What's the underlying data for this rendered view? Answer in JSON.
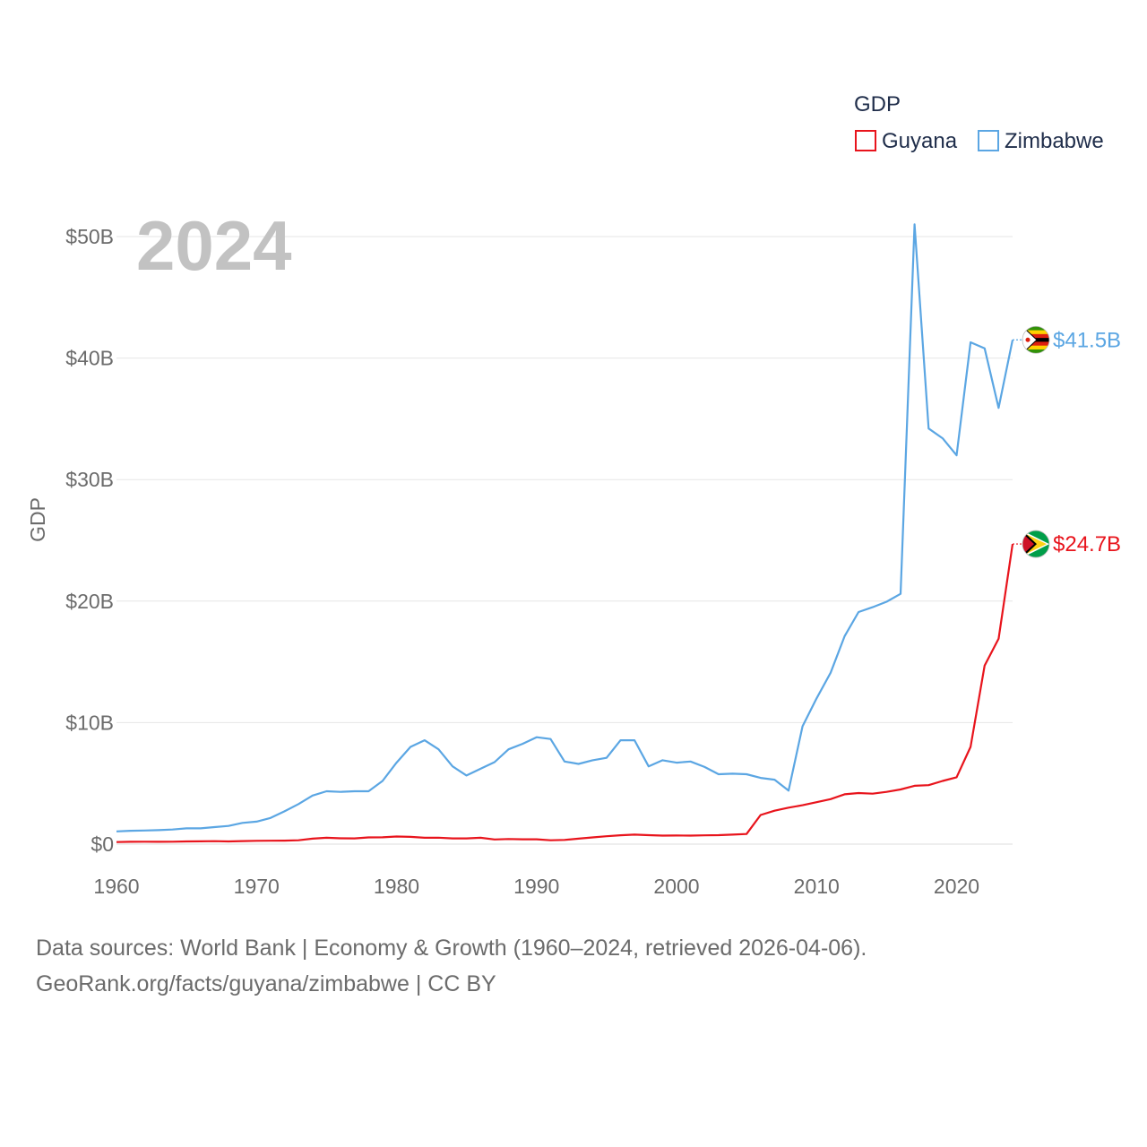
{
  "chart_data": {
    "type": "line",
    "current_year_label": "2024",
    "ylabel": "GDP",
    "ylim": [
      0,
      50
    ],
    "y_unit": "billions USD",
    "y_ticks": [
      {
        "value": 0,
        "label": "$0"
      },
      {
        "value": 10,
        "label": "$10B"
      },
      {
        "value": 20,
        "label": "$20B"
      },
      {
        "value": 30,
        "label": "$30B"
      },
      {
        "value": 40,
        "label": "$40B"
      },
      {
        "value": 50,
        "label": "$50B"
      }
    ],
    "xlim": [
      1960,
      2024
    ],
    "x_ticks": [
      {
        "value": 1960,
        "label": "1960"
      },
      {
        "value": 1970,
        "label": "1970"
      },
      {
        "value": 1980,
        "label": "1980"
      },
      {
        "value": 1990,
        "label": "1990"
      },
      {
        "value": 2000,
        "label": "2000"
      },
      {
        "value": 2010,
        "label": "2010"
      },
      {
        "value": 2020,
        "label": "2020"
      }
    ],
    "legend": {
      "title": "GDP",
      "position": "top-right"
    },
    "series": [
      {
        "name": "Guyana",
        "color": "#e8141c",
        "end_label": "$24.7B",
        "flag": "guyana-flag",
        "x": [
          1960,
          1961,
          1962,
          1963,
          1964,
          1965,
          1966,
          1967,
          1968,
          1969,
          1970,
          1971,
          1972,
          1973,
          1974,
          1975,
          1976,
          1977,
          1978,
          1979,
          1980,
          1981,
          1982,
          1983,
          1984,
          1985,
          1986,
          1987,
          1988,
          1989,
          1990,
          1991,
          1992,
          1993,
          1994,
          1995,
          1996,
          1997,
          1998,
          1999,
          2000,
          2001,
          2002,
          2003,
          2004,
          2005,
          2006,
          2007,
          2008,
          2009,
          2010,
          2011,
          2012,
          2013,
          2014,
          2015,
          2016,
          2017,
          2018,
          2019,
          2020,
          2021,
          2022,
          2023,
          2024
        ],
        "values": [
          0.17,
          0.19,
          0.2,
          0.19,
          0.2,
          0.22,
          0.23,
          0.24,
          0.22,
          0.25,
          0.27,
          0.28,
          0.29,
          0.32,
          0.45,
          0.52,
          0.48,
          0.47,
          0.55,
          0.56,
          0.63,
          0.6,
          0.52,
          0.53,
          0.47,
          0.47,
          0.52,
          0.38,
          0.42,
          0.4,
          0.4,
          0.32,
          0.35,
          0.45,
          0.55,
          0.65,
          0.73,
          0.78,
          0.74,
          0.7,
          0.71,
          0.7,
          0.72,
          0.74,
          0.78,
          0.83,
          2.4,
          2.75,
          3.0,
          3.2,
          3.45,
          3.7,
          4.1,
          4.2,
          4.15,
          4.3,
          4.5,
          4.8,
          4.85,
          5.2,
          5.5,
          8.0,
          14.7,
          16.9,
          24.7
        ]
      },
      {
        "name": "Zimbabwe",
        "color": "#5ba6e3",
        "end_label": "$41.5B",
        "flag": "zimbabwe-flag",
        "x": [
          1960,
          1961,
          1962,
          1963,
          1964,
          1965,
          1966,
          1967,
          1968,
          1969,
          1970,
          1971,
          1972,
          1973,
          1974,
          1975,
          1976,
          1977,
          1978,
          1979,
          1980,
          1981,
          1982,
          1983,
          1984,
          1985,
          1986,
          1987,
          1988,
          1989,
          1990,
          1991,
          1992,
          1993,
          1994,
          1995,
          1996,
          1997,
          1998,
          1999,
          2000,
          2001,
          2002,
          2003,
          2004,
          2005,
          2006,
          2007,
          2008,
          2009,
          2010,
          2011,
          2012,
          2013,
          2014,
          2015,
          2016,
          2017,
          2018,
          2019,
          2020,
          2021,
          2022,
          2023,
          2024
        ],
        "values": [
          1.05,
          1.1,
          1.12,
          1.15,
          1.2,
          1.3,
          1.3,
          1.4,
          1.5,
          1.75,
          1.85,
          2.15,
          2.7,
          3.3,
          4.0,
          4.35,
          4.3,
          4.35,
          4.35,
          5.2,
          6.7,
          8.0,
          8.55,
          7.8,
          6.4,
          5.65,
          6.2,
          6.75,
          7.8,
          8.25,
          8.8,
          8.65,
          6.8,
          6.6,
          6.9,
          7.1,
          8.55,
          8.55,
          6.4,
          6.9,
          6.7,
          6.8,
          6.35,
          5.75,
          5.8,
          5.75,
          5.45,
          5.3,
          4.4,
          9.7,
          12.0,
          14.1,
          17.1,
          19.1,
          19.5,
          19.95,
          20.6,
          51.0,
          34.2,
          33.4,
          32.0,
          41.3,
          40.8,
          35.9,
          41.5
        ]
      }
    ]
  },
  "footer": {
    "line1": "Data sources: World Bank | Economy & Growth (1960–2024, retrieved 2026-04-06).",
    "line2": "GeoRank.org/facts/guyana/zimbabwe | CC BY"
  }
}
